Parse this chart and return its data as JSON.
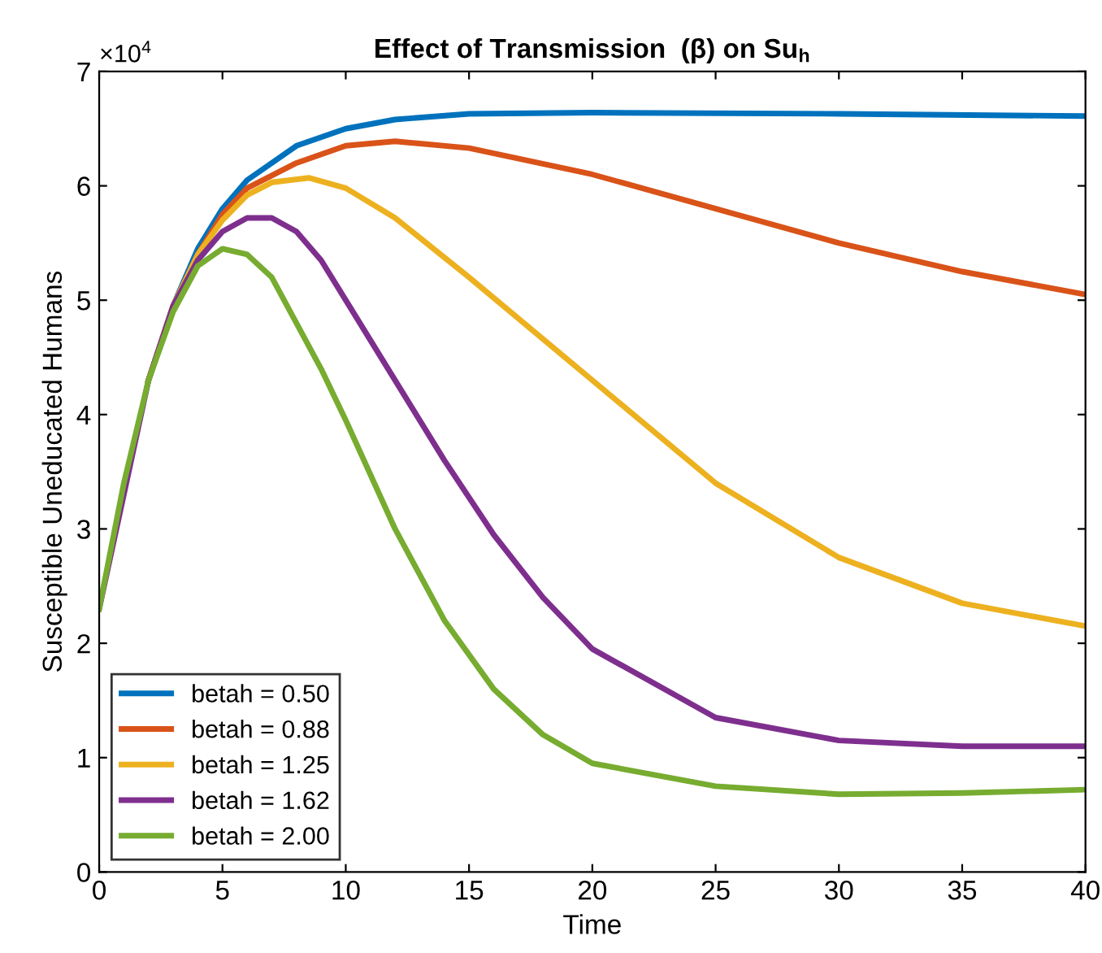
{
  "chart_data": {
    "type": "line",
    "title": "Effect of Transmission  (β) on Su$_{h}$",
    "xlabel": "Time",
    "ylabel": "Susceptible Uneducated Humans",
    "annotations": [
      "×10$^{4}$"
    ],
    "xlim": [
      0,
      40
    ],
    "xticks": [
      0,
      5,
      10,
      15,
      20,
      25,
      30,
      35,
      40
    ],
    "ylim": [
      0,
      7
    ],
    "yticks": [
      0,
      1,
      2,
      3,
      4,
      5,
      6,
      7
    ],
    "grid": false,
    "legend": "bottom left",
    "line_style": "solid",
    "marker": "none",
    "series": [
      {
        "name": "betah = 0.50",
        "color": "#0072bd",
        "x": [
          2,
          3,
          4,
          5,
          6,
          8,
          10,
          12,
          15,
          20,
          30,
          40
        ],
        "values": [
          4.3,
          4.95,
          5.45,
          5.8,
          6.05,
          6.35,
          6.5,
          6.58,
          6.63,
          6.64,
          6.63,
          6.61
        ]
      },
      {
        "name": "betah = 0.88",
        "color": "#d95319",
        "x": [
          2,
          3,
          4,
          5,
          6,
          8,
          10,
          12,
          15,
          20,
          25,
          30,
          35,
          40
        ],
        "values": [
          4.3,
          4.95,
          5.4,
          5.75,
          5.98,
          6.2,
          6.35,
          6.39,
          6.33,
          6.1,
          5.8,
          5.5,
          5.25,
          5.05
        ]
      },
      {
        "name": "betah = 1.25",
        "color": "#edb120",
        "x": [
          2,
          3,
          4,
          5,
          6,
          7,
          8.5,
          10,
          12,
          15,
          20,
          25,
          30,
          35,
          40
        ],
        "values": [
          4.3,
          4.95,
          5.4,
          5.7,
          5.92,
          6.03,
          6.07,
          5.98,
          5.72,
          5.2,
          4.3,
          3.4,
          2.75,
          2.35,
          2.15
        ]
      },
      {
        "name": "betah = 1.62",
        "color": "#7e2f8e",
        "x": [
          0,
          2,
          3,
          4,
          5,
          6,
          7,
          8,
          9,
          10,
          12,
          14,
          16,
          18,
          20,
          25,
          30,
          35,
          40
        ],
        "values": [
          2.3,
          4.3,
          4.95,
          5.35,
          5.6,
          5.72,
          5.72,
          5.6,
          5.35,
          5.0,
          4.3,
          3.6,
          2.95,
          2.4,
          1.95,
          1.35,
          1.15,
          1.1,
          1.1
        ]
      },
      {
        "name": "betah = 2.00",
        "color": "#77ac30",
        "x": [
          0,
          1,
          2,
          3,
          4,
          5,
          6,
          7,
          8,
          9,
          10,
          12,
          14,
          16,
          18,
          20,
          25,
          30,
          35,
          40
        ],
        "values": [
          2.3,
          3.4,
          4.3,
          4.9,
          5.3,
          5.45,
          5.4,
          5.2,
          4.8,
          4.4,
          3.95,
          3.0,
          2.2,
          1.6,
          1.2,
          0.95,
          0.75,
          0.68,
          0.69,
          0.72
        ]
      }
    ]
  }
}
